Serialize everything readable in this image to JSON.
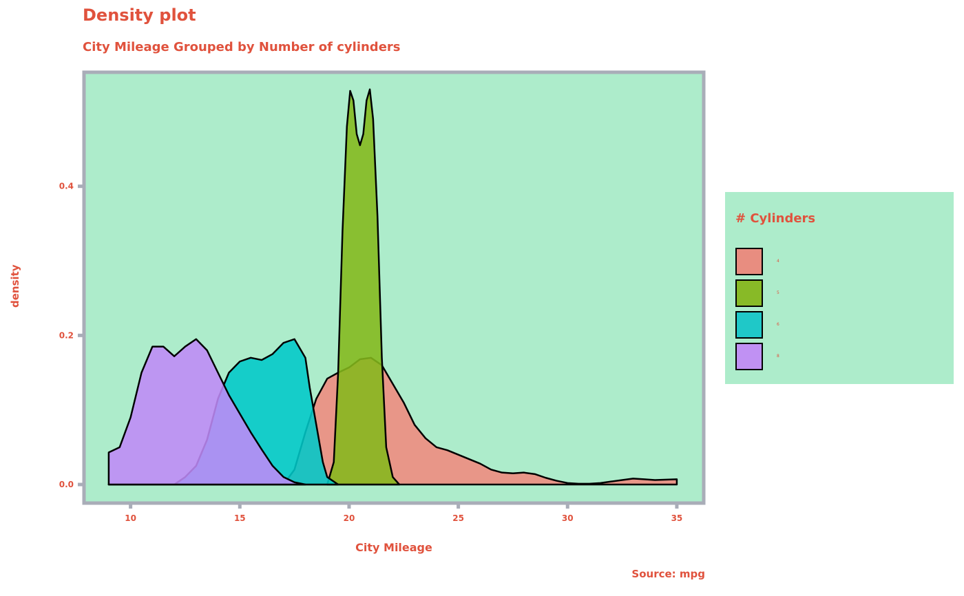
{
  "chart_data": {
    "type": "area",
    "title": "Density plot",
    "subtitle": "City Mileage Grouped by Number of cylinders",
    "xlabel": "City Mileage",
    "ylabel": "density",
    "caption": "Source: mpg",
    "xlim": [
      7.9,
      36.2
    ],
    "ylim": [
      -0.024,
      0.552
    ],
    "xticks": [
      10,
      15,
      20,
      25,
      30,
      35
    ],
    "yticks": [
      0.0,
      0.2,
      0.4
    ],
    "xtick_labels": [
      "10",
      "15",
      "20",
      "25",
      "30",
      "35"
    ],
    "ytick_labels": [
      "0.0",
      "0.2",
      "0.4"
    ],
    "grid": false,
    "legend_position": "right",
    "legend_title": "# Cylinders",
    "panel_background": "#adeccb",
    "border_color": "#a9adb8",
    "series": [
      {
        "name": "4",
        "color": "#f08a7e",
        "points": [
          [
            9,
            0
          ],
          [
            17,
            0
          ],
          [
            17.5,
            0.02
          ],
          [
            18,
            0.07
          ],
          [
            18.5,
            0.115
          ],
          [
            19,
            0.142
          ],
          [
            19.5,
            0.15
          ],
          [
            20,
            0.157
          ],
          [
            20.5,
            0.168
          ],
          [
            21,
            0.17
          ],
          [
            21.5,
            0.16
          ],
          [
            22,
            0.135
          ],
          [
            22.5,
            0.11
          ],
          [
            23,
            0.08
          ],
          [
            23.5,
            0.062
          ],
          [
            24,
            0.05
          ],
          [
            24.5,
            0.046
          ],
          [
            25,
            0.04
          ],
          [
            25.5,
            0.034
          ],
          [
            26,
            0.028
          ],
          [
            26.5,
            0.02
          ],
          [
            27,
            0.016
          ],
          [
            27.5,
            0.015
          ],
          [
            28,
            0.016
          ],
          [
            28.5,
            0.014
          ],
          [
            29,
            0.009
          ],
          [
            29.5,
            0.005
          ],
          [
            30,
            0.002
          ],
          [
            30.5,
            0.001
          ],
          [
            31,
            0.001
          ],
          [
            31.5,
            0.002
          ],
          [
            32,
            0.004
          ],
          [
            32.5,
            0.006
          ],
          [
            33,
            0.008
          ],
          [
            33.5,
            0.007
          ],
          [
            34,
            0.006
          ],
          [
            35,
            0.007
          ]
        ]
      },
      {
        "name": "5",
        "color": "#84b81b",
        "points": [
          [
            19,
            0
          ],
          [
            19.3,
            0.03
          ],
          [
            19.5,
            0.15
          ],
          [
            19.7,
            0.34
          ],
          [
            19.9,
            0.48
          ],
          [
            20.05,
            0.528
          ],
          [
            20.2,
            0.515
          ],
          [
            20.35,
            0.47
          ],
          [
            20.5,
            0.455
          ],
          [
            20.65,
            0.47
          ],
          [
            20.8,
            0.515
          ],
          [
            20.95,
            0.53
          ],
          [
            21.1,
            0.49
          ],
          [
            21.3,
            0.36
          ],
          [
            21.5,
            0.17
          ],
          [
            21.7,
            0.05
          ],
          [
            22,
            0.01
          ],
          [
            22.3,
            0
          ]
        ]
      },
      {
        "name": "6",
        "color": "#00c8c8",
        "points": [
          [
            9,
            0
          ],
          [
            12,
            0
          ],
          [
            12.5,
            0.01
          ],
          [
            13,
            0.025
          ],
          [
            13.5,
            0.06
          ],
          [
            14,
            0.115
          ],
          [
            14.5,
            0.15
          ],
          [
            15,
            0.165
          ],
          [
            15.5,
            0.17
          ],
          [
            16,
            0.167
          ],
          [
            16.5,
            0.175
          ],
          [
            17,
            0.19
          ],
          [
            17.5,
            0.195
          ],
          [
            18,
            0.17
          ],
          [
            18.2,
            0.13
          ],
          [
            18.5,
            0.08
          ],
          [
            18.8,
            0.03
          ],
          [
            19,
            0.01
          ],
          [
            19.5,
            0
          ]
        ]
      },
      {
        "name": "8",
        "color": "#bf8af7",
        "points": [
          [
            9,
            0.043
          ],
          [
            9.5,
            0.05
          ],
          [
            10,
            0.09
          ],
          [
            10.5,
            0.15
          ],
          [
            11,
            0.185
          ],
          [
            11.5,
            0.185
          ],
          [
            12,
            0.172
          ],
          [
            12.5,
            0.185
          ],
          [
            13,
            0.195
          ],
          [
            13.5,
            0.18
          ],
          [
            14,
            0.15
          ],
          [
            14.5,
            0.12
          ],
          [
            15,
            0.095
          ],
          [
            15.5,
            0.07
          ],
          [
            16,
            0.047
          ],
          [
            16.5,
            0.025
          ],
          [
            17,
            0.01
          ],
          [
            17.5,
            0.003
          ],
          [
            18,
            0
          ]
        ]
      }
    ]
  },
  "legend": {
    "title": "# Cylinders",
    "items": [
      {
        "label": "4",
        "color": "#e88d80"
      },
      {
        "label": "5",
        "color": "#88ba27"
      },
      {
        "label": "6",
        "color": "#1fc8c8"
      },
      {
        "label": "8",
        "color": "#c091f3"
      }
    ]
  }
}
